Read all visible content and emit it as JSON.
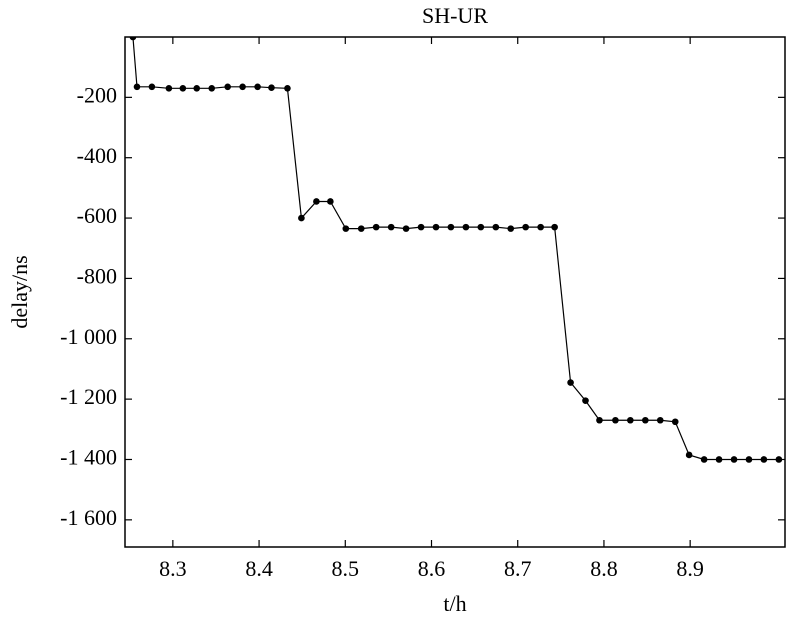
{
  "chart_data": {
    "type": "line",
    "title": "SH-UR",
    "xlabel": "t/h",
    "ylabel": "delay/ns",
    "x": [
      8.2537,
      8.2584,
      8.2757,
      8.2954,
      8.3116,
      8.3277,
      8.3451,
      8.3636,
      8.3809,
      8.3983,
      8.4144,
      8.4329,
      8.4491,
      8.4665,
      8.4827,
      8.5006,
      8.5185,
      8.5358,
      8.5532,
      8.5705,
      8.5879,
      8.6052,
      8.6225,
      8.6399,
      8.6572,
      8.6746,
      8.6919,
      8.7092,
      8.7266,
      8.7428,
      8.7613,
      8.7786,
      8.7948,
      8.8133,
      8.8306,
      8.848,
      8.8653,
      8.8827,
      8.8988,
      8.9162,
      8.9335,
      8.9509,
      8.9682,
      8.9855,
      9.0029
    ],
    "series": [
      {
        "name": "delay",
        "color": "#000000",
        "values": [
          0,
          -165,
          -165,
          -170,
          -170,
          -170,
          -170,
          -165,
          -165,
          -165,
          -168,
          -170,
          -600,
          -545,
          -545,
          -635,
          -635,
          -630,
          -630,
          -635,
          -630,
          -630,
          -630,
          -630,
          -630,
          -630,
          -635,
          -630,
          -630,
          -630,
          -1145,
          -1205,
          -1270,
          -1270,
          -1270,
          -1270,
          -1270,
          -1275,
          -1385,
          -1400,
          -1400,
          -1400,
          -1400,
          -1400,
          -1400
        ]
      }
    ],
    "xlim": [
      8.2445,
      9.01
    ],
    "xticks": [
      8.3,
      8.4,
      8.5,
      8.6,
      8.7,
      8.8,
      8.9
    ],
    "ylim": [
      -1690,
      0
    ],
    "yticks": [
      -200,
      -400,
      -600,
      -800,
      {
        "value": -1000,
        "label": "-1 000"
      },
      {
        "value": -1200,
        "label": "-1 200"
      },
      {
        "value": -1400,
        "label": "-1 400"
      },
      {
        "value": -1600,
        "label": "-1 600"
      }
    ],
    "grid": false
  }
}
